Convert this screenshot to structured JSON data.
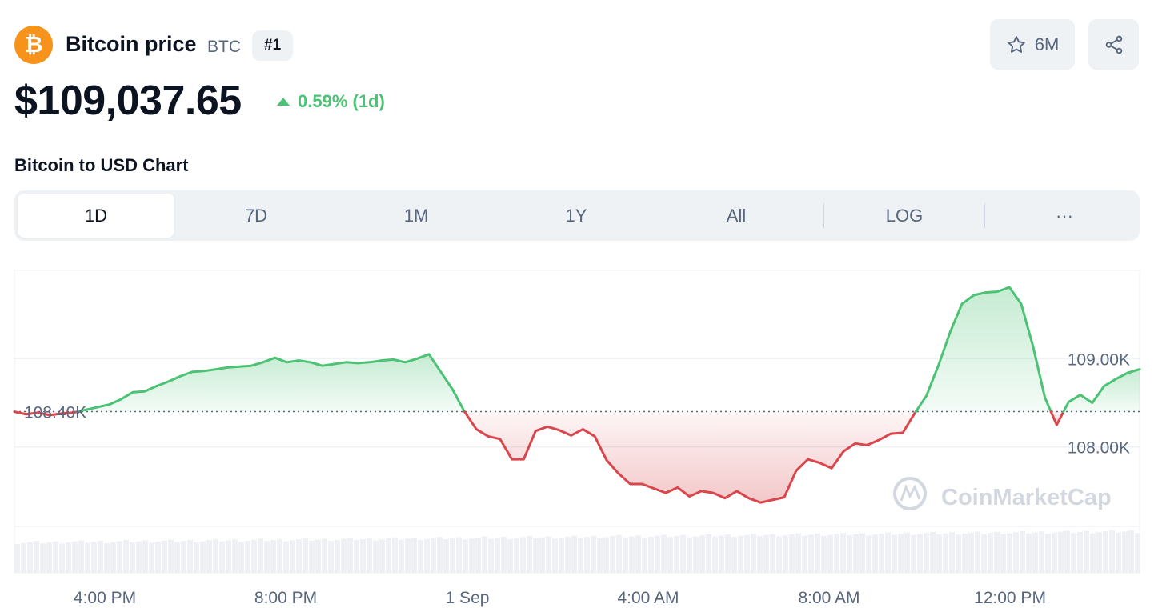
{
  "header": {
    "coin_name": "Bitcoin price",
    "coin_symbol": "BTC",
    "rank": "#1",
    "logo_glyph": "₿",
    "watchlist_count": "6M",
    "watchlist_icon": "star-icon",
    "share_icon": "share-icon"
  },
  "price": {
    "value": "$109,037.65",
    "change": "0.59% (1d)",
    "change_direction": "up"
  },
  "chart_title": "Bitcoin to USD Chart",
  "tabs": [
    {
      "label": "1D",
      "active": true
    },
    {
      "label": "7D",
      "active": false
    },
    {
      "label": "1M",
      "active": false
    },
    {
      "label": "1Y",
      "active": false
    },
    {
      "label": "All",
      "active": false
    },
    {
      "label": "LOG",
      "active": false
    },
    {
      "label": "···",
      "active": false
    }
  ],
  "colors": {
    "up": "#4cc274",
    "down": "#d9464c",
    "brand": "#f7931a",
    "text_secondary": "#58667e"
  },
  "watermark": "CoinMarketCap",
  "chart_data": {
    "type": "area",
    "baseline": {
      "value": 108400,
      "label": "108.40K"
    },
    "x": [
      "2:30 PM",
      "2:45 PM",
      "3:00 PM",
      "3:15 PM",
      "3:30 PM",
      "3:45 PM",
      "4:00 PM",
      "4:15 PM",
      "4:30 PM",
      "4:45 PM",
      "5:00 PM",
      "5:15 PM",
      "5:30 PM",
      "5:45 PM",
      "6:00 PM",
      "6:15 PM",
      "6:30 PM",
      "6:45 PM",
      "7:00 PM",
      "7:15 PM",
      "7:30 PM",
      "7:45 PM",
      "8:00 PM",
      "8:15 PM",
      "8:30 PM",
      "8:45 PM",
      "9:00 PM",
      "9:15 PM",
      "9:30 PM",
      "9:45 PM",
      "10:00 PM",
      "10:15 PM",
      "10:30 PM",
      "10:45 PM",
      "11:00 PM",
      "11:15 PM",
      "11:30 PM",
      "11:45 PM",
      "12:00 AM",
      "12:15 AM",
      "12:30 AM",
      "12:45 AM",
      "1:00 AM",
      "1:15 AM",
      "1:30 AM",
      "1:45 AM",
      "2:00 AM",
      "2:15 AM",
      "2:30 AM",
      "2:45 AM",
      "3:00 AM",
      "3:15 AM",
      "3:30 AM",
      "3:45 AM",
      "4:00 AM",
      "4:15 AM",
      "4:30 AM",
      "4:45 AM",
      "5:00 AM",
      "5:15 AM",
      "5:30 AM",
      "5:45 AM",
      "6:00 AM",
      "6:15 AM",
      "6:30 AM",
      "6:45 AM",
      "7:00 AM",
      "7:15 AM",
      "7:30 AM",
      "7:45 AM",
      "8:00 AM",
      "8:15 AM",
      "8:30 AM",
      "8:45 AM",
      "9:00 AM",
      "9:15 AM",
      "9:30 AM",
      "9:45 AM",
      "10:00 AM",
      "10:15 AM",
      "10:30 AM",
      "10:45 AM",
      "11:00 AM",
      "11:15 AM",
      "11:30 AM",
      "11:45 AM",
      "12:00 PM",
      "12:15 PM",
      "12:30 PM",
      "12:45 PM",
      "1:00 PM",
      "1:15 PM",
      "1:30 PM",
      "1:45 PM",
      "2:00 PM",
      "2:15 PM"
    ],
    "y": [
      108400,
      108370,
      108390,
      108360,
      108380,
      108390,
      108420,
      108450,
      108480,
      108540,
      108620,
      108630,
      108690,
      108740,
      108800,
      108850,
      108860,
      108880,
      108900,
      108910,
      108920,
      108960,
      109010,
      108960,
      108980,
      108960,
      108920,
      108940,
      108960,
      108950,
      108960,
      108980,
      108990,
      108960,
      109000,
      109050,
      108850,
      108650,
      108400,
      108200,
      108120,
      108090,
      107860,
      107860,
      108180,
      108230,
      108190,
      108130,
      108200,
      108120,
      107850,
      107700,
      107580,
      107580,
      107530,
      107480,
      107540,
      107440,
      107500,
      107480,
      107420,
      107500,
      107420,
      107370,
      107400,
      107430,
      107730,
      107860,
      107820,
      107760,
      107950,
      108040,
      108020,
      108080,
      108150,
      108160,
      108380,
      108580,
      108920,
      109300,
      109620,
      109720,
      109750,
      109760,
      109810,
      109620,
      109140,
      108560,
      108250,
      108510,
      108590,
      108500,
      108690,
      108770,
      108840,
      108880
    ],
    "y_ticks": [
      {
        "value": 108000,
        "label": "108.00K"
      },
      {
        "value": 109000,
        "label": "109.00K"
      }
    ],
    "x_ticks": [
      "4:00 PM",
      "8:00 PM",
      "1 Sep",
      "4:00 AM",
      "8:00 AM",
      "12:00 PM"
    ],
    "ylim": [
      107100,
      110000
    ],
    "grid": true,
    "legend": "none",
    "volume_bars": true
  }
}
